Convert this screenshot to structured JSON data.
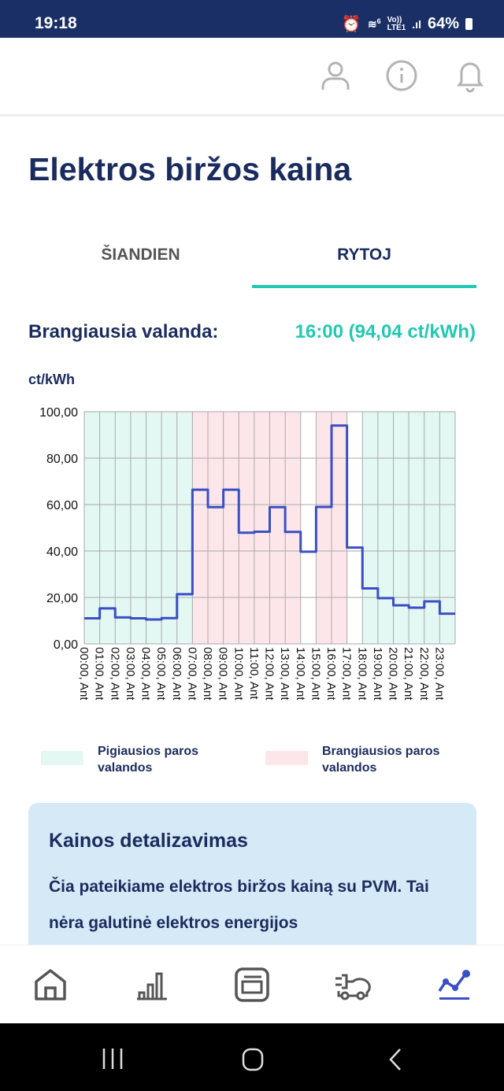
{
  "status_bar": {
    "time": "19:18",
    "battery": "64%",
    "network": "LTE1",
    "volte": "Vo))",
    "wifi_badge": "6"
  },
  "header": {
    "icons": [
      "user-icon",
      "info-icon",
      "bell-icon"
    ]
  },
  "page": {
    "title": "Elektros biržos kaina"
  },
  "tabs": [
    {
      "label": "ŠIANDIEN",
      "active": false
    },
    {
      "label": "RYTOJ",
      "active": true
    }
  ],
  "peak": {
    "label": "Brangiausia valanda:",
    "value": "16:00 (94,04 ct/kWh)"
  },
  "colors": {
    "accent": "#23c8b0",
    "line": "#3a4fc4",
    "cheap": "#e3f7f3",
    "expensive": "#fce6ea",
    "title": "#1a2b5e"
  },
  "chart_data": {
    "type": "line",
    "step": true,
    "ylabel": "ct/kWh",
    "ylim": [
      0,
      100
    ],
    "yticks": [
      "0,00",
      "20,00",
      "40,00",
      "60,00",
      "80,00",
      "100,00"
    ],
    "grid": true,
    "categories": [
      "00:00, Ant",
      "01:00, Ant",
      "02:00, Ant",
      "03:00, Ant",
      "04:00, Ant",
      "05:00, Ant",
      "06:00, Ant",
      "07:00, Ant",
      "08:00, Ant",
      "09:00, Ant",
      "10:00, Ant",
      "11:00, Ant",
      "12:00, Ant",
      "13:00, Ant",
      "14:00, Ant",
      "15:00, Ant",
      "16:00, Ant",
      "17:00, Ant",
      "18:00, Ant",
      "19:00, Ant",
      "20:00, Ant",
      "21:00, Ant",
      "22:00, Ant",
      "23:00, Ant"
    ],
    "values": [
      11.0,
      15.3,
      11.4,
      11.0,
      10.5,
      11.1,
      21.4,
      66.4,
      58.9,
      66.4,
      47.9,
      48.3,
      58.9,
      48.2,
      39.7,
      59.0,
      94.04,
      41.5,
      23.9,
      19.7,
      16.6,
      15.6,
      18.3,
      13.0
    ],
    "cheapest_hours": [
      0,
      1,
      2,
      3,
      4,
      5,
      6,
      18,
      19,
      20,
      21,
      22,
      23
    ],
    "expensive_hours": [
      7,
      8,
      9,
      10,
      11,
      12,
      13,
      15,
      16
    ],
    "legend": [
      {
        "label": "Pigiausios paros valandos",
        "color": "#e3f7f3"
      },
      {
        "label": "Brangiausios paros valandos",
        "color": "#fce6ea"
      }
    ],
    "legend_position": "bottom"
  },
  "details": {
    "title": "Kainos detalizavimas",
    "text": "Čia pateikiame elektros biržos kainą su PVM. Tai nėra galutinė elektros energijos"
  },
  "bottom_nav": [
    {
      "icon": "home-icon",
      "active": false
    },
    {
      "icon": "bar-chart-icon",
      "active": false
    },
    {
      "icon": "invoice-icon",
      "active": false
    },
    {
      "icon": "ev-car-icon",
      "active": false
    },
    {
      "icon": "price-trend-icon",
      "active": true
    }
  ]
}
